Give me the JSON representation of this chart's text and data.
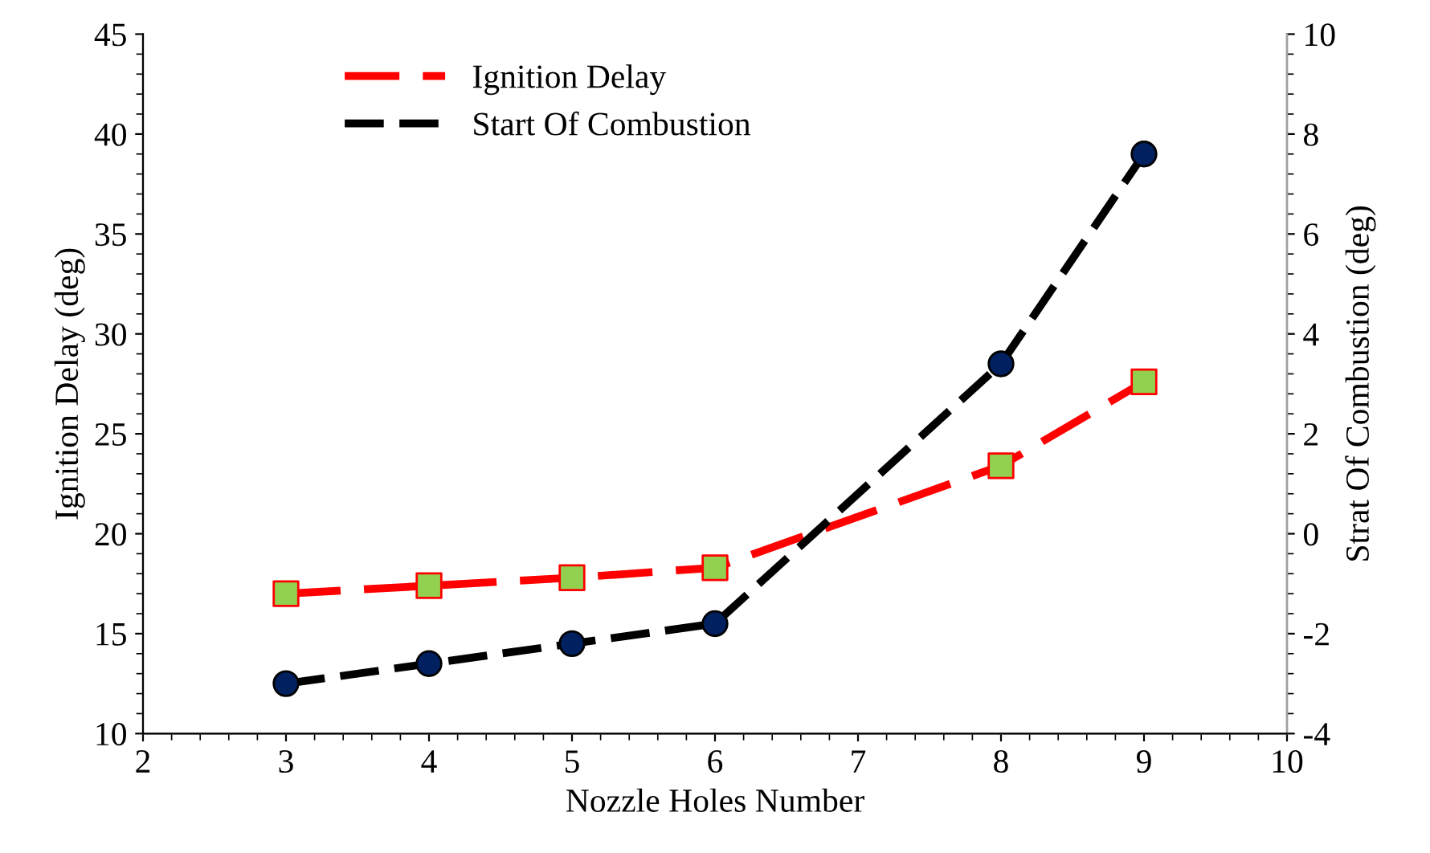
{
  "chart_data": {
    "type": "line",
    "xlabel": "Nozzle Holes Number",
    "ylabel": "Ignition Delay (deg)",
    "y2label": "Strat Of Combustion (deg)",
    "x": [
      3,
      4,
      5,
      6,
      8,
      9
    ],
    "series": [
      {
        "name": "Ignition Delay",
        "color": "#ff0000",
        "colors": [
          "#92d050",
          "#92d050",
          "#92d050",
          "#92d050",
          "#92d050",
          "#92d050"
        ],
        "marker": "square",
        "line_style": "dashed",
        "values": [
          17.0,
          17.4,
          17.8,
          18.3,
          23.4,
          27.6
        ]
      },
      {
        "name": "Start Of Combustion",
        "color": "#000000",
        "colors": [
          "#002060",
          "#002060",
          "#002060",
          "#002060",
          "#002060",
          "#002060"
        ],
        "marker": "circle",
        "line_style": "dashed",
        "axis": "y2",
        "values": [
          -3.0,
          -2.6,
          -2.2,
          -1.8,
          3.4,
          7.6
        ]
      }
    ],
    "xlim": [
      2,
      10
    ],
    "xticks": [
      2,
      3,
      4,
      5,
      6,
      7,
      8,
      9,
      10
    ],
    "ylim": [
      10,
      45
    ],
    "yticks": [
      10,
      15,
      20,
      25,
      30,
      35,
      40,
      45
    ],
    "y2lim": [
      -4,
      10
    ],
    "y2ticks": [
      -4,
      -2,
      0,
      2,
      4,
      6,
      8,
      10
    ],
    "grid": false,
    "legend": "top left"
  }
}
